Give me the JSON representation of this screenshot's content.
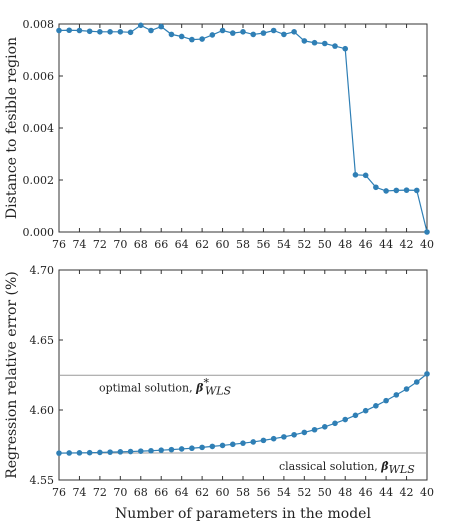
{
  "chart_data": [
    {
      "type": "line",
      "ylabel": "Distance to fesible region",
      "xlabel": "",
      "xlim": [
        76,
        40
      ],
      "ylim": [
        0,
        0.008
      ],
      "x_inverted": true,
      "x_tick_labels": [
        "76",
        "74",
        "72",
        "70",
        "68",
        "66",
        "64",
        "62",
        "60",
        "58",
        "56",
        "54",
        "52",
        "50",
        "48",
        "46",
        "44",
        "42",
        "40"
      ],
      "y_tick_labels": [
        "0.000",
        "0.002",
        "0.004",
        "0.006",
        "0.008"
      ],
      "series": [
        {
          "color": "#2f7fb5",
          "x": [
            76,
            75,
            74,
            73,
            72,
            71,
            70,
            69,
            68,
            67,
            66,
            65,
            64,
            63,
            62,
            61,
            60,
            59,
            58,
            57,
            56,
            55,
            54,
            53,
            52,
            51,
            50,
            49,
            48,
            47,
            46,
            45,
            44,
            43,
            42,
            41,
            40
          ],
          "y": [
            0.00775,
            0.00776,
            0.00775,
            0.00772,
            0.0077,
            0.0077,
            0.0077,
            0.00768,
            0.00795,
            0.00775,
            0.0079,
            0.0076,
            0.00752,
            0.0074,
            0.00742,
            0.00758,
            0.00775,
            0.00765,
            0.0077,
            0.0076,
            0.00765,
            0.00775,
            0.0076,
            0.0077,
            0.00735,
            0.00728,
            0.00725,
            0.00715,
            0.00705,
            0.0022,
            0.00218,
            0.00172,
            0.00158,
            0.0016,
            0.00161,
            0.0016,
            0.0
          ]
        }
      ]
    },
    {
      "type": "line",
      "ylabel": "Regression relative error (%)",
      "xlabel": "Number of parameters in the model",
      "xlim": [
        76,
        40
      ],
      "ylim": [
        4.55,
        4.7
      ],
      "x_inverted": true,
      "x_tick_labels": [
        "76",
        "74",
        "72",
        "70",
        "68",
        "66",
        "64",
        "62",
        "60",
        "58",
        "56",
        "54",
        "52",
        "50",
        "48",
        "46",
        "44",
        "42",
        "40"
      ],
      "y_tick_labels": [
        "4.55",
        "4.60",
        "4.65",
        "4.70"
      ],
      "series": [
        {
          "color": "#2f7fb5",
          "x": [
            76,
            75,
            74,
            73,
            72,
            71,
            70,
            69,
            68,
            67,
            66,
            65,
            64,
            63,
            62,
            61,
            60,
            59,
            58,
            57,
            56,
            55,
            54,
            53,
            52,
            51,
            50,
            49,
            48,
            47,
            46,
            45,
            44,
            43,
            42,
            41,
            40
          ],
          "y": [
            4.5692,
            4.5693,
            4.5694,
            4.5695,
            4.5697,
            4.5699,
            4.5701,
            4.5703,
            4.5706,
            4.5709,
            4.5713,
            4.5717,
            4.5722,
            4.5727,
            4.5733,
            4.574,
            4.5747,
            4.5755,
            4.5763,
            4.5772,
            4.5783,
            4.5795,
            4.5808,
            4.5823,
            4.584,
            4.5859,
            4.588,
            4.5905,
            4.5932,
            4.5962,
            4.5995,
            4.603,
            4.6067,
            4.6108,
            4.615,
            4.62,
            4.6258
          ]
        }
      ],
      "hlines": [
        {
          "y": 4.6248,
          "color": "#999999",
          "label_text": "optimal solution, ",
          "label_math": "β*WLS"
        },
        {
          "y": 4.5693,
          "color": "#999999",
          "label_text": "classical solution, ",
          "label_math": "β̂WLS"
        }
      ]
    }
  ]
}
